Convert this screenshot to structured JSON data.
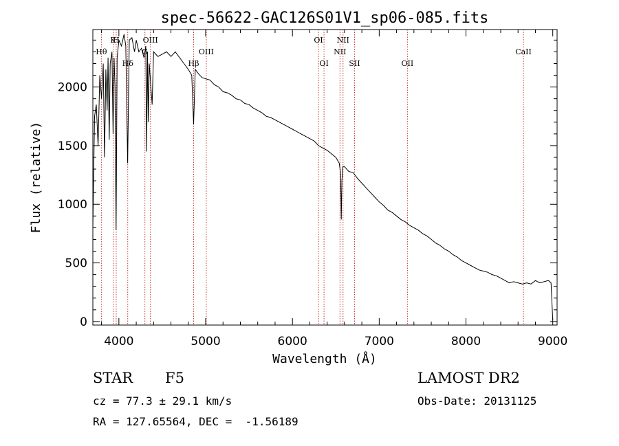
{
  "chart_data": {
    "type": "line",
    "title": "spec-56622-GAC126S01V1_sp06-085.fits",
    "xlabel": "Wavelength (Å)",
    "ylabel": "Flux (relative)",
    "xlim": [
      3700,
      9050
    ],
    "ylim": [
      -30,
      2490
    ],
    "xticks": [
      4000,
      5000,
      6000,
      7000,
      8000,
      9000
    ],
    "yticks": [
      0,
      500,
      1000,
      1500,
      2000
    ],
    "grid": false,
    "series": [
      {
        "points": [
          [
            3700,
            800
          ],
          [
            3720,
            1750
          ],
          [
            3740,
            1850
          ],
          [
            3760,
            1500
          ],
          [
            3780,
            2100
          ],
          [
            3800,
            1900
          ],
          [
            3820,
            2200
          ],
          [
            3835,
            1400
          ],
          [
            3850,
            2150
          ],
          [
            3865,
            1800
          ],
          [
            3875,
            2250
          ],
          [
            3889,
            1550
          ],
          [
            3900,
            2200
          ],
          [
            3920,
            2300
          ],
          [
            3933,
            1600
          ],
          [
            3945,
            2250
          ],
          [
            3955,
            2000
          ],
          [
            3968,
            780
          ],
          [
            3980,
            2250
          ],
          [
            4000,
            2400
          ],
          [
            4030,
            2350
          ],
          [
            4060,
            2450
          ],
          [
            4080,
            2350
          ],
          [
            4101,
            1350
          ],
          [
            4120,
            2400
          ],
          [
            4150,
            2420
          ],
          [
            4180,
            2300
          ],
          [
            4200,
            2400
          ],
          [
            4230,
            2300
          ],
          [
            4260,
            2330
          ],
          [
            4290,
            2250
          ],
          [
            4310,
            2350
          ],
          [
            4320,
            1450
          ],
          [
            4330,
            2300
          ],
          [
            4340,
            1700
          ],
          [
            4350,
            2200
          ],
          [
            4383,
            1850
          ],
          [
            4400,
            2300
          ],
          [
            4450,
            2260
          ],
          [
            4500,
            2280
          ],
          [
            4550,
            2300
          ],
          [
            4600,
            2260
          ],
          [
            4650,
            2300
          ],
          [
            4700,
            2250
          ],
          [
            4750,
            2200
          ],
          [
            4800,
            2150
          ],
          [
            4840,
            2100
          ],
          [
            4861,
            1680
          ],
          [
            4880,
            2150
          ],
          [
            4920,
            2110
          ],
          [
            4960,
            2080
          ],
          [
            5000,
            2070
          ],
          [
            5050,
            2060
          ],
          [
            5100,
            2020
          ],
          [
            5150,
            2000
          ],
          [
            5200,
            1960
          ],
          [
            5250,
            1950
          ],
          [
            5300,
            1930
          ],
          [
            5350,
            1900
          ],
          [
            5400,
            1890
          ],
          [
            5450,
            1860
          ],
          [
            5500,
            1850
          ],
          [
            5550,
            1820
          ],
          [
            5600,
            1800
          ],
          [
            5650,
            1780
          ],
          [
            5700,
            1750
          ],
          [
            5750,
            1740
          ],
          [
            5800,
            1720
          ],
          [
            5850,
            1700
          ],
          [
            5900,
            1680
          ],
          [
            5950,
            1660
          ],
          [
            6000,
            1640
          ],
          [
            6050,
            1620
          ],
          [
            6100,
            1600
          ],
          [
            6150,
            1580
          ],
          [
            6200,
            1560
          ],
          [
            6250,
            1540
          ],
          [
            6300,
            1500
          ],
          [
            6350,
            1480
          ],
          [
            6400,
            1460
          ],
          [
            6450,
            1430
          ],
          [
            6500,
            1400
          ],
          [
            6540,
            1350
          ],
          [
            6555,
            1260
          ],
          [
            6563,
            870
          ],
          [
            6570,
            1200
          ],
          [
            6580,
            1320
          ],
          [
            6600,
            1320
          ],
          [
            6650,
            1280
          ],
          [
            6700,
            1270
          ],
          [
            6750,
            1220
          ],
          [
            6800,
            1180
          ],
          [
            6850,
            1140
          ],
          [
            6900,
            1100
          ],
          [
            6950,
            1060
          ],
          [
            7000,
            1020
          ],
          [
            7050,
            990
          ],
          [
            7100,
            950
          ],
          [
            7150,
            930
          ],
          [
            7200,
            900
          ],
          [
            7250,
            870
          ],
          [
            7300,
            850
          ],
          [
            7350,
            820
          ],
          [
            7400,
            800
          ],
          [
            7450,
            780
          ],
          [
            7500,
            750
          ],
          [
            7550,
            730
          ],
          [
            7600,
            700
          ],
          [
            7650,
            670
          ],
          [
            7700,
            650
          ],
          [
            7750,
            620
          ],
          [
            7800,
            600
          ],
          [
            7850,
            570
          ],
          [
            7900,
            550
          ],
          [
            7950,
            520
          ],
          [
            8000,
            500
          ],
          [
            8050,
            480
          ],
          [
            8100,
            460
          ],
          [
            8150,
            440
          ],
          [
            8200,
            430
          ],
          [
            8250,
            420
          ],
          [
            8300,
            400
          ],
          [
            8350,
            390
          ],
          [
            8400,
            370
          ],
          [
            8450,
            350
          ],
          [
            8500,
            330
          ],
          [
            8550,
            340
          ],
          [
            8600,
            330
          ],
          [
            8650,
            320
          ],
          [
            8700,
            330
          ],
          [
            8750,
            320
          ],
          [
            8800,
            350
          ],
          [
            8850,
            330
          ],
          [
            8900,
            340
          ],
          [
            8950,
            350
          ],
          [
            8980,
            330
          ],
          [
            9000,
            10
          ]
        ]
      }
    ],
    "lines": [
      {
        "label": "Hθ",
        "x": 3798,
        "tier": 2
      },
      {
        "label": "K",
        "x": 3934,
        "tier": 0
      },
      {
        "label": "H",
        "x": 3969,
        "tier": 0
      },
      {
        "label": "Hδ",
        "x": 4102,
        "tier": 3
      },
      {
        "label": "G",
        "x": 4300,
        "tier": 2
      },
      {
        "label": "OIII",
        "x": 4363,
        "tier": 0
      },
      {
        "label": "Hβ",
        "x": 4861,
        "tier": 3
      },
      {
        "label": "OIII",
        "x": 5007,
        "tier": 2
      },
      {
        "label": "OI",
        "x": 6300,
        "tier": 0
      },
      {
        "label": "OI",
        "x": 6364,
        "tier": 3
      },
      {
        "label": "NII",
        "x": 6548,
        "tier": 2
      },
      {
        "label": "NII",
        "x": 6583,
        "tier": 0
      },
      {
        "label": "SII",
        "x": 6716,
        "tier": 3
      },
      {
        "label": "OII",
        "x": 7325,
        "tier": 3
      },
      {
        "label": "CaII",
        "x": 8662,
        "tier": 2
      }
    ]
  },
  "info": {
    "object_class": "STAR",
    "subclass": "F5",
    "survey": "LAMOST DR2",
    "cz": "cz = 77.3 ± 29.1 km/s",
    "obs_date": "Obs-Date: 20131125",
    "coords": "RA = 127.65564, DEC =  -1.56189"
  },
  "colors": {
    "line_marker": "#c0392b",
    "spectrum": "#000000"
  }
}
